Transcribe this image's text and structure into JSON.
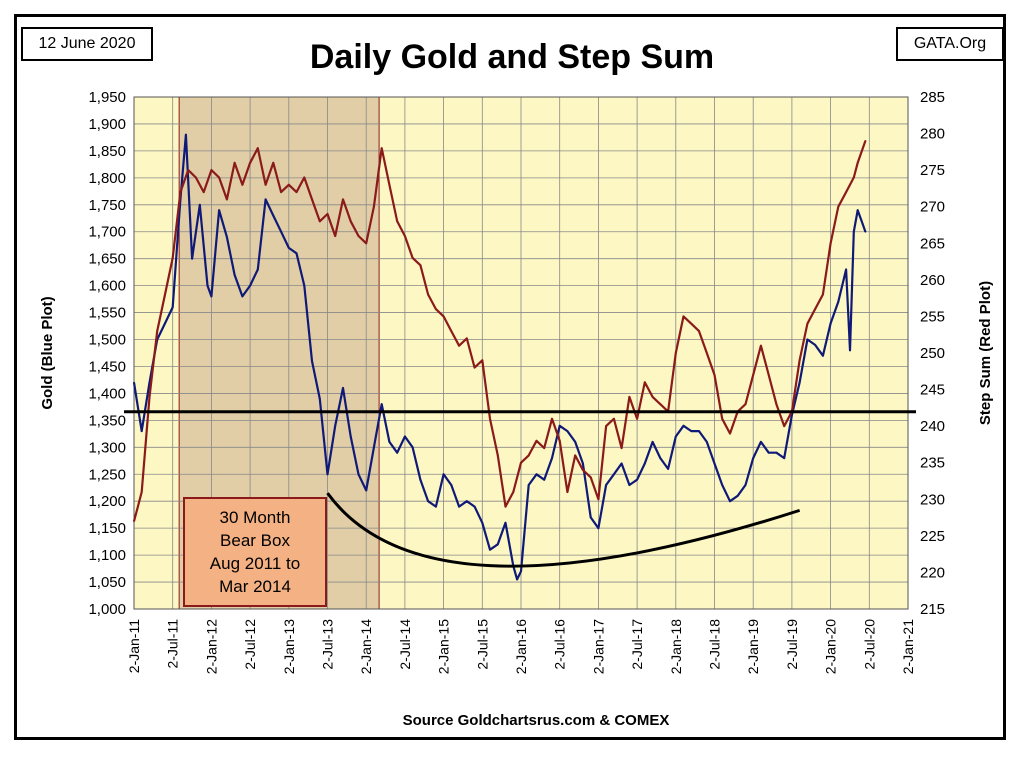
{
  "header": {
    "date": "12 June 2020",
    "site": "GATA.Org"
  },
  "chart_data": {
    "type": "line",
    "title": "Daily Gold and Step Sum",
    "ylabel": "Gold   (Blue Plot)",
    "y2label": "Step Sum    (Red Plot)",
    "xlabel": "Source Goldchartsrus.com & COMEX",
    "ylim": [
      1000,
      1950
    ],
    "y2lim": [
      215,
      285
    ],
    "y_ticks": [
      "1,000",
      "1,050",
      "1,100",
      "1,150",
      "1,200",
      "1,250",
      "1,300",
      "1,350",
      "1,400",
      "1,450",
      "1,500",
      "1,550",
      "1,600",
      "1,650",
      "1,700",
      "1,750",
      "1,800",
      "1,850",
      "1,900",
      "1,950"
    ],
    "y2_ticks": [
      "215",
      "220",
      "225",
      "230",
      "235",
      "240",
      "245",
      "250",
      "255",
      "260",
      "265",
      "270",
      "275",
      "280",
      "285"
    ],
    "x_ticks": [
      "2-Jan-11",
      "2-Jul-11",
      "2-Jan-12",
      "2-Jul-12",
      "2-Jan-13",
      "2-Jul-13",
      "2-Jan-14",
      "2-Jul-14",
      "2-Jan-15",
      "2-Jul-15",
      "2-Jan-16",
      "2-Jul-16",
      "2-Jan-17",
      "2-Jul-17",
      "2-Jan-18",
      "2-Jul-18",
      "2-Jan-19",
      "2-Jul-19",
      "2-Jan-20",
      "2-Jul-20",
      "2-Jan-21"
    ],
    "grid": true,
    "colors": {
      "gold": "#0f1a78",
      "step": "#8b1a1a",
      "plot_bg": "#fdf7c3",
      "box": "#d9c3a0"
    },
    "annotation": {
      "label": "30 Month\nBear Box\nAug 2011 to\nMar 2014",
      "start": "2011-08",
      "end": "2014-03"
    },
    "reference_line": {
      "axis": "y",
      "value": 1366
    },
    "trend_curve": {
      "points": [
        [
          2013.5,
          1215
        ],
        [
          2015.67,
          1080
        ],
        [
          2019.6,
          1183
        ]
      ]
    },
    "series": [
      {
        "axis": "y",
        "points": [
          [
            2011.0,
            1420
          ],
          [
            2011.1,
            1330
          ],
          [
            2011.2,
            1420
          ],
          [
            2011.3,
            1500
          ],
          [
            2011.4,
            1530
          ],
          [
            2011.5,
            1560
          ],
          [
            2011.6,
            1760
          ],
          [
            2011.67,
            1880
          ],
          [
            2011.75,
            1650
          ],
          [
            2011.85,
            1750
          ],
          [
            2011.95,
            1600
          ],
          [
            2012.0,
            1580
          ],
          [
            2012.1,
            1740
          ],
          [
            2012.2,
            1690
          ],
          [
            2012.3,
            1620
          ],
          [
            2012.4,
            1580
          ],
          [
            2012.5,
            1600
          ],
          [
            2012.6,
            1630
          ],
          [
            2012.7,
            1760
          ],
          [
            2012.8,
            1730
          ],
          [
            2012.9,
            1700
          ],
          [
            2013.0,
            1670
          ],
          [
            2013.1,
            1660
          ],
          [
            2013.2,
            1600
          ],
          [
            2013.3,
            1460
          ],
          [
            2013.4,
            1390
          ],
          [
            2013.5,
            1250
          ],
          [
            2013.6,
            1340
          ],
          [
            2013.7,
            1410
          ],
          [
            2013.8,
            1320
          ],
          [
            2013.9,
            1250
          ],
          [
            2014.0,
            1220
          ],
          [
            2014.1,
            1300
          ],
          [
            2014.2,
            1380
          ],
          [
            2014.3,
            1310
          ],
          [
            2014.4,
            1290
          ],
          [
            2014.5,
            1320
          ],
          [
            2014.6,
            1300
          ],
          [
            2014.7,
            1240
          ],
          [
            2014.8,
            1200
          ],
          [
            2014.9,
            1190
          ],
          [
            2015.0,
            1250
          ],
          [
            2015.1,
            1230
          ],
          [
            2015.2,
            1190
          ],
          [
            2015.3,
            1200
          ],
          [
            2015.4,
            1190
          ],
          [
            2015.5,
            1160
          ],
          [
            2015.6,
            1110
          ],
          [
            2015.7,
            1120
          ],
          [
            2015.8,
            1160
          ],
          [
            2015.9,
            1080
          ],
          [
            2015.95,
            1055
          ],
          [
            2016.0,
            1070
          ],
          [
            2016.1,
            1230
          ],
          [
            2016.2,
            1250
          ],
          [
            2016.3,
            1240
          ],
          [
            2016.4,
            1280
          ],
          [
            2016.5,
            1340
          ],
          [
            2016.6,
            1330
          ],
          [
            2016.7,
            1310
          ],
          [
            2016.8,
            1270
          ],
          [
            2016.9,
            1170
          ],
          [
            2017.0,
            1150
          ],
          [
            2017.1,
            1230
          ],
          [
            2017.2,
            1250
          ],
          [
            2017.3,
            1270
          ],
          [
            2017.4,
            1230
          ],
          [
            2017.5,
            1240
          ],
          [
            2017.6,
            1270
          ],
          [
            2017.7,
            1310
          ],
          [
            2017.8,
            1280
          ],
          [
            2017.9,
            1260
          ],
          [
            2018.0,
            1320
          ],
          [
            2018.1,
            1340
          ],
          [
            2018.2,
            1330
          ],
          [
            2018.3,
            1330
          ],
          [
            2018.4,
            1310
          ],
          [
            2018.5,
            1270
          ],
          [
            2018.6,
            1230
          ],
          [
            2018.7,
            1200
          ],
          [
            2018.8,
            1210
          ],
          [
            2018.9,
            1230
          ],
          [
            2019.0,
            1280
          ],
          [
            2019.1,
            1310
          ],
          [
            2019.2,
            1290
          ],
          [
            2019.3,
            1290
          ],
          [
            2019.4,
            1280
          ],
          [
            2019.5,
            1360
          ],
          [
            2019.6,
            1420
          ],
          [
            2019.7,
            1500
          ],
          [
            2019.8,
            1490
          ],
          [
            2019.9,
            1470
          ],
          [
            2020.0,
            1530
          ],
          [
            2020.1,
            1570
          ],
          [
            2020.2,
            1630
          ],
          [
            2020.25,
            1480
          ],
          [
            2020.3,
            1700
          ],
          [
            2020.35,
            1740
          ],
          [
            2020.4,
            1720
          ],
          [
            2020.45,
            1700
          ]
        ]
      },
      {
        "axis": "y2",
        "points": [
          [
            2011.0,
            227
          ],
          [
            2011.05,
            229
          ],
          [
            2011.1,
            231
          ],
          [
            2011.2,
            244
          ],
          [
            2011.3,
            253
          ],
          [
            2011.4,
            258
          ],
          [
            2011.5,
            263
          ],
          [
            2011.6,
            272
          ],
          [
            2011.7,
            275
          ],
          [
            2011.8,
            274
          ],
          [
            2011.9,
            272
          ],
          [
            2012.0,
            275
          ],
          [
            2012.1,
            274
          ],
          [
            2012.2,
            271
          ],
          [
            2012.3,
            276
          ],
          [
            2012.4,
            273
          ],
          [
            2012.5,
            276
          ],
          [
            2012.6,
            278
          ],
          [
            2012.7,
            273
          ],
          [
            2012.8,
            276
          ],
          [
            2012.9,
            272
          ],
          [
            2013.0,
            273
          ],
          [
            2013.1,
            272
          ],
          [
            2013.2,
            274
          ],
          [
            2013.3,
            271
          ],
          [
            2013.4,
            268
          ],
          [
            2013.5,
            269
          ],
          [
            2013.6,
            266
          ],
          [
            2013.7,
            271
          ],
          [
            2013.8,
            268
          ],
          [
            2013.9,
            266
          ],
          [
            2014.0,
            265
          ],
          [
            2014.1,
            270
          ],
          [
            2014.2,
            278
          ],
          [
            2014.3,
            273
          ],
          [
            2014.4,
            268
          ],
          [
            2014.5,
            266
          ],
          [
            2014.6,
            263
          ],
          [
            2014.7,
            262
          ],
          [
            2014.8,
            258
          ],
          [
            2014.9,
            256
          ],
          [
            2015.0,
            255
          ],
          [
            2015.1,
            253
          ],
          [
            2015.2,
            251
          ],
          [
            2015.3,
            252
          ],
          [
            2015.4,
            248
          ],
          [
            2015.5,
            249
          ],
          [
            2015.6,
            241
          ],
          [
            2015.7,
            236
          ],
          [
            2015.8,
            229
          ],
          [
            2015.9,
            231
          ],
          [
            2016.0,
            235
          ],
          [
            2016.1,
            236
          ],
          [
            2016.2,
            238
          ],
          [
            2016.3,
            237
          ],
          [
            2016.4,
            241
          ],
          [
            2016.5,
            238
          ],
          [
            2016.6,
            231
          ],
          [
            2016.7,
            236
          ],
          [
            2016.8,
            234
          ],
          [
            2016.9,
            233
          ],
          [
            2017.0,
            230
          ],
          [
            2017.1,
            240
          ],
          [
            2017.2,
            241
          ],
          [
            2017.3,
            237
          ],
          [
            2017.4,
            244
          ],
          [
            2017.5,
            241
          ],
          [
            2017.6,
            246
          ],
          [
            2017.7,
            244
          ],
          [
            2017.8,
            243
          ],
          [
            2017.9,
            242
          ],
          [
            2018.0,
            250
          ],
          [
            2018.1,
            255
          ],
          [
            2018.2,
            254
          ],
          [
            2018.3,
            253
          ],
          [
            2018.4,
            250
          ],
          [
            2018.5,
            247
          ],
          [
            2018.6,
            241
          ],
          [
            2018.7,
            239
          ],
          [
            2018.8,
            242
          ],
          [
            2018.9,
            243
          ],
          [
            2019.0,
            247
          ],
          [
            2019.1,
            251
          ],
          [
            2019.2,
            247
          ],
          [
            2019.3,
            243
          ],
          [
            2019.4,
            240
          ],
          [
            2019.5,
            242
          ],
          [
            2019.6,
            249
          ],
          [
            2019.7,
            254
          ],
          [
            2019.8,
            256
          ],
          [
            2019.9,
            258
          ],
          [
            2020.0,
            265
          ],
          [
            2020.1,
            270
          ],
          [
            2020.2,
            272
          ],
          [
            2020.3,
            274
          ],
          [
            2020.35,
            276
          ],
          [
            2020.45,
            279
          ]
        ]
      }
    ]
  }
}
